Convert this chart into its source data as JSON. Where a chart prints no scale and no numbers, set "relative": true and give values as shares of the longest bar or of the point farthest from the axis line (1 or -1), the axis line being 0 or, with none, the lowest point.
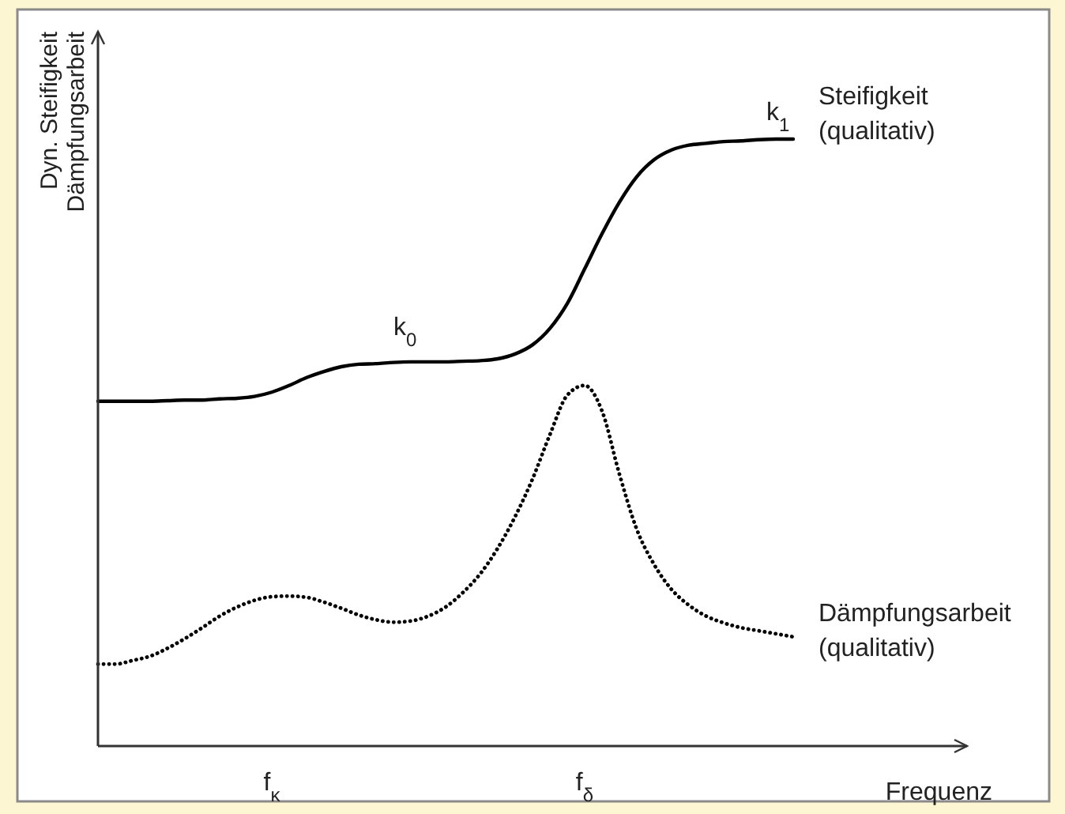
{
  "chart_data": {
    "type": "line",
    "relative": true,
    "xlabel": "Frequenz",
    "ylabel": "Dyn. Steifigkeit\nDämpfungsarbeit",
    "categories": [
      null,
      null,
      null,
      null,
      null,
      null,
      null,
      null,
      null,
      null,
      "f$_{κ}$",
      null,
      null,
      null,
      null,
      null,
      null,
      null,
      null,
      null,
      null,
      null,
      null,
      null,
      null,
      null,
      null,
      null,
      "f$_{δ}$",
      null,
      null,
      null,
      null,
      null,
      null,
      null,
      null,
      null,
      null,
      null,
      null,
      null,
      null,
      null,
      null,
      null,
      null,
      null,
      null,
      null,
      null
    ],
    "series": [
      {
        "name": "Steifigkeit (qualitativ)",
        "color": "#000000",
        "line_style": "solid",
        "values": [
          0.568,
          0.568,
          0.568,
          0.568,
          0.569,
          0.57,
          0.57,
          0.572,
          0.573,
          0.576,
          0.583,
          0.594,
          0.607,
          0.617,
          0.625,
          0.629,
          0.63,
          0.632,
          0.633,
          0.633,
          0.633,
          0.634,
          0.635,
          0.638,
          0.646,
          0.661,
          0.688,
          0.729,
          0.786,
          0.844,
          0.896,
          0.938,
          0.966,
          0.982,
          0.99,
          0.993,
          0.996,
          0.997,
          0.999,
          1,
          1,
          null,
          null,
          null,
          null,
          null,
          null,
          null,
          null,
          null,
          null
        ]
      },
      {
        "name": "Dämpfungsarbeit (qualitativ)",
        "color": "#000000",
        "line_style": "dotted",
        "values": [
          0.135,
          0.135,
          0.141,
          0.148,
          0.161,
          0.177,
          0.195,
          0.214,
          0.229,
          0.24,
          0.246,
          0.247,
          0.245,
          0.237,
          0.227,
          0.216,
          0.208,
          0.204,
          0.206,
          0.214,
          0.229,
          0.253,
          0.284,
          0.326,
          0.378,
          0.44,
          0.513,
          0.578,
          0.594,
          0.552,
          0.448,
          0.357,
          0.299,
          0.258,
          0.232,
          0.214,
          0.203,
          0.195,
          0.19,
          0.185,
          0.18,
          null,
          null,
          null,
          null,
          null,
          null,
          null,
          null,
          null,
          null
        ]
      }
    ],
    "annotations": [
      "k$_{0}$",
      "k$_{1}$"
    ]
  }
}
